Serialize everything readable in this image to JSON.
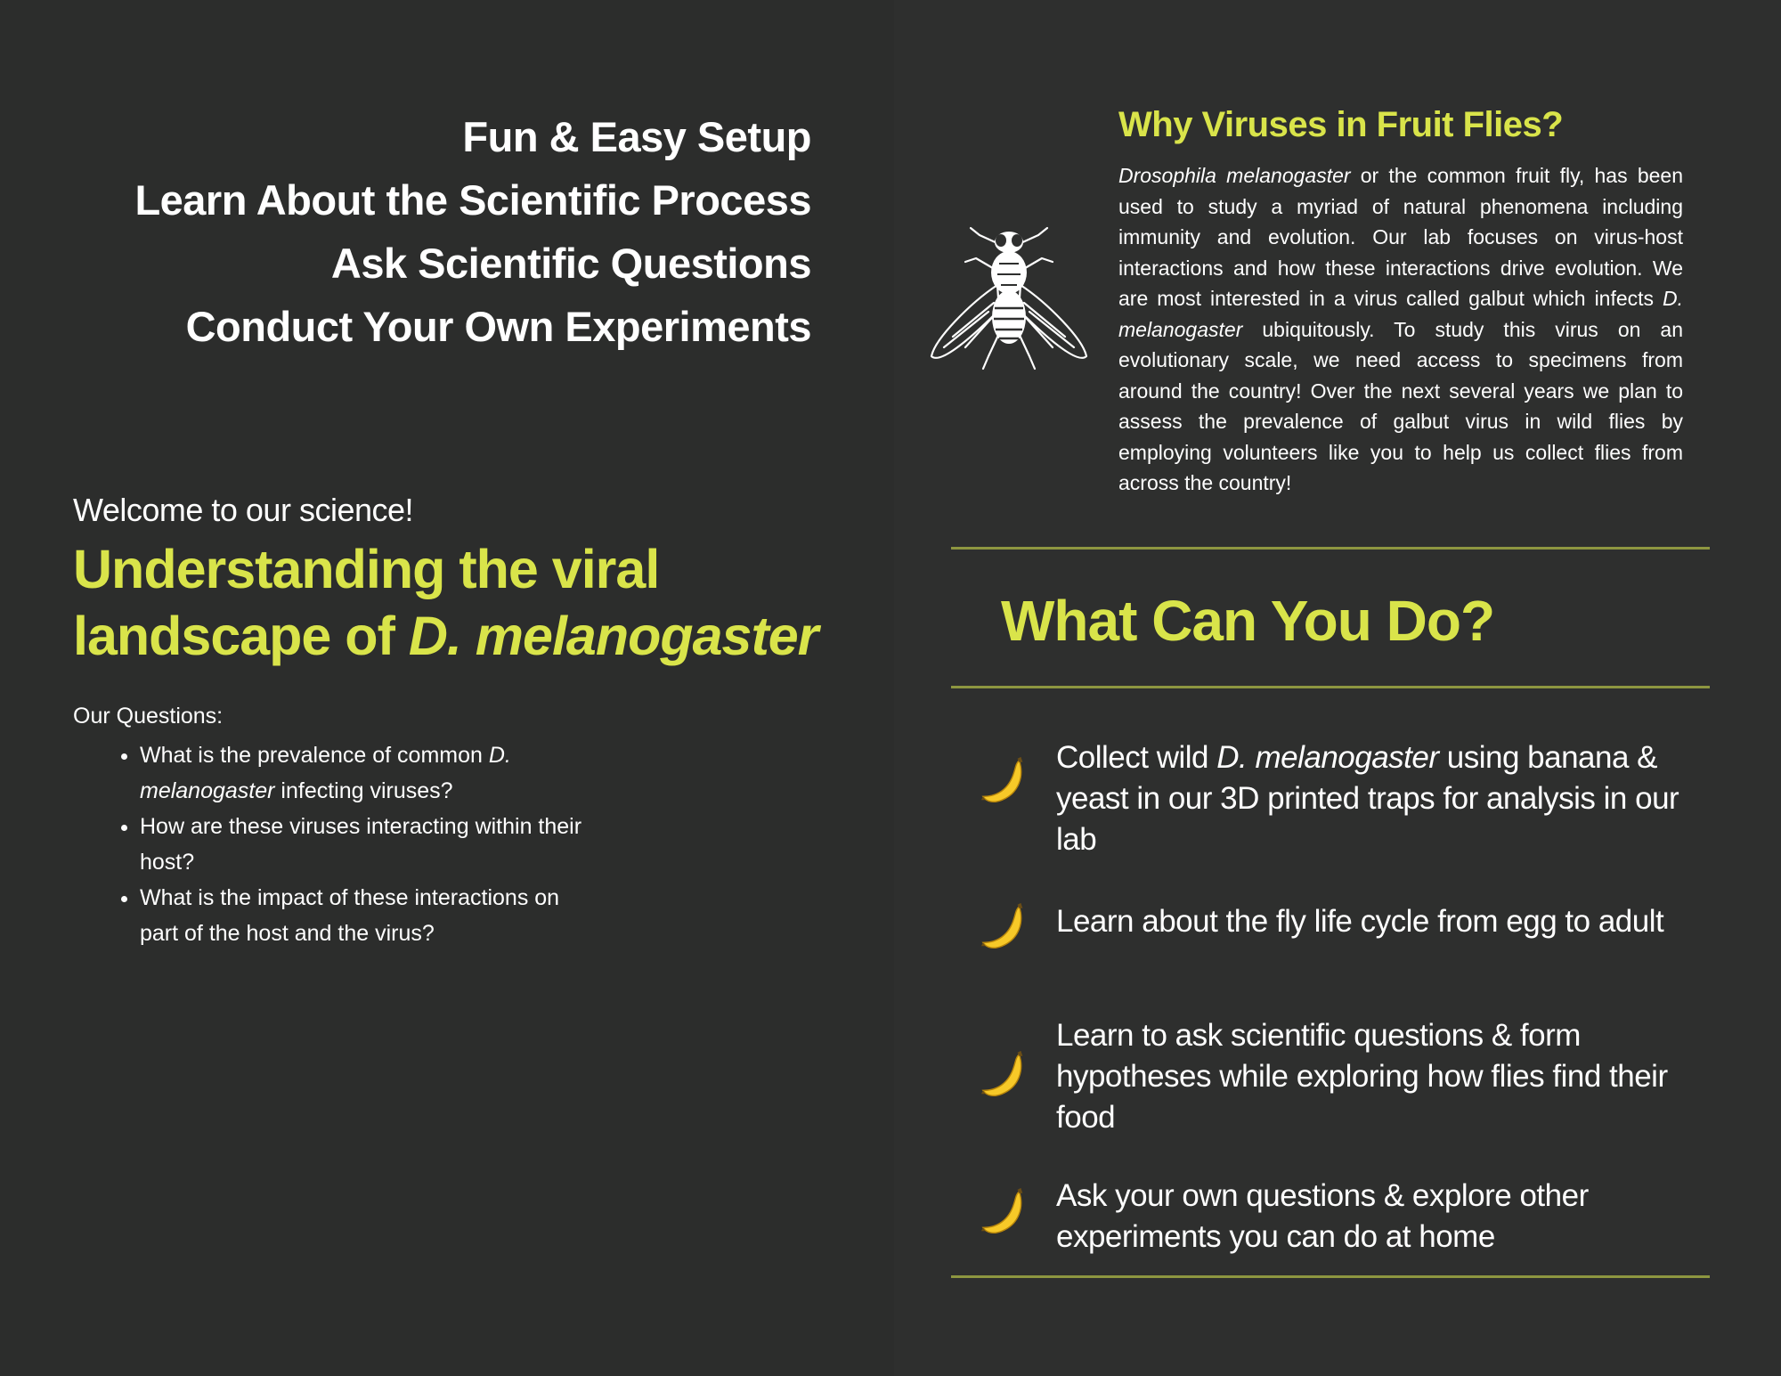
{
  "left": {
    "features": [
      "Fun & Easy Setup",
      "Learn About the Scientific Process",
      "Ask Scientific Questions",
      "Conduct Your Own Experiments"
    ],
    "welcome": "Welcome to our science!",
    "headline_line1": "Understanding the viral",
    "headline_line2_prefix": "landscape of ",
    "headline_line2_italic": "D. melanogaster",
    "questions_label": "Our Questions:",
    "q1_prefix": "What is the prevalence of common ",
    "q1_italic": "D. melanogaster",
    "q1_suffix": " infecting viruses?",
    "q2": "How are these viruses interacting within their host?",
    "q3": "What is the impact of these interactions on part of the host and the virus?"
  },
  "right": {
    "why_title": "Why Viruses in Fruit Flies?",
    "why_italic1": "Drosophila melanogaster",
    "why_text1": " or the common fruit fly, has been used to study a myriad of natural phenomena including immunity and evolution. Our lab focuses on virus-host interactions and how these interactions drive evolution. We are most interested in a virus called galbut which infects ",
    "why_italic2": "D. melanogaster",
    "why_text2": " ubiquitously. To study this virus on an evolutionary scale, we need access to specimens from around the country! Over the next several years we plan to assess the prevalence of galbut virus in wild flies by employing volunteers like you to help us collect flies from across the country!",
    "do_title": "What Can You Do?",
    "a1_prefix": "Collect wild ",
    "a1_italic": "D. melanogaster",
    "a1_suffix": " using banana & yeast in our 3D printed traps for analysis in our lab",
    "a2": "Learn about the fly life cycle from egg to adult",
    "a3": "Learn to ask scientific questions & form hypotheses while exploring how flies find their food",
    "a4": "Ask your own questions & explore other experiments you can do at home"
  },
  "colors": {
    "background": "#2c2d2c",
    "accent": "#d9e44a",
    "divider": "#8d9640",
    "text": "#ffffff"
  },
  "icons": [
    "fly-illustration",
    "banana-icon"
  ]
}
